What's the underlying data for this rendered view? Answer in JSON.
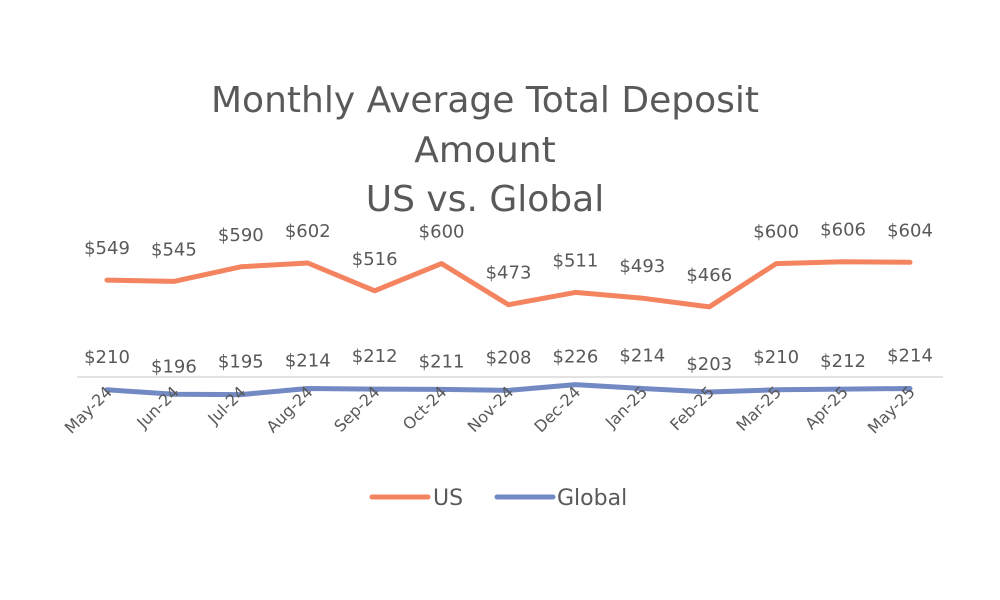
{
  "chart_data": {
    "type": "line",
    "title_lines": [
      "Monthly Average Total Deposit",
      "Amount",
      "US vs. Global"
    ],
    "categories": [
      "May-24",
      "Jun-24",
      "Jul-24",
      "Aug-24",
      "Sep-24",
      "Oct-24",
      "Nov-24",
      "Dec-24",
      "Jan-25",
      "Feb-25",
      "Mar-25",
      "Apr-25",
      "May-25"
    ],
    "series": [
      {
        "name": "US",
        "color": "#F4845F",
        "values": [
          549,
          545,
          590,
          602,
          516,
          600,
          473,
          511,
          493,
          466,
          600,
          606,
          604
        ],
        "labels": [
          "$549",
          "$545",
          "$590",
          "$602",
          "$516",
          "$600",
          "$473",
          "$511",
          "$493",
          "$466",
          "$600",
          "$606",
          "$604"
        ]
      },
      {
        "name": "Global",
        "color": "#7289C4",
        "values": [
          210,
          196,
          195,
          214,
          212,
          211,
          208,
          226,
          214,
          203,
          210,
          212,
          214
        ],
        "labels": [
          "$210",
          "$196",
          "$195",
          "$214",
          "$212",
          "$211",
          "$208",
          "$226",
          "$214",
          "$203",
          "$210",
          "$212",
          "$214"
        ]
      }
    ],
    "xlabel": "",
    "ylabel": "",
    "y_axis_visible": false,
    "grid": false,
    "legend": "bottom"
  }
}
